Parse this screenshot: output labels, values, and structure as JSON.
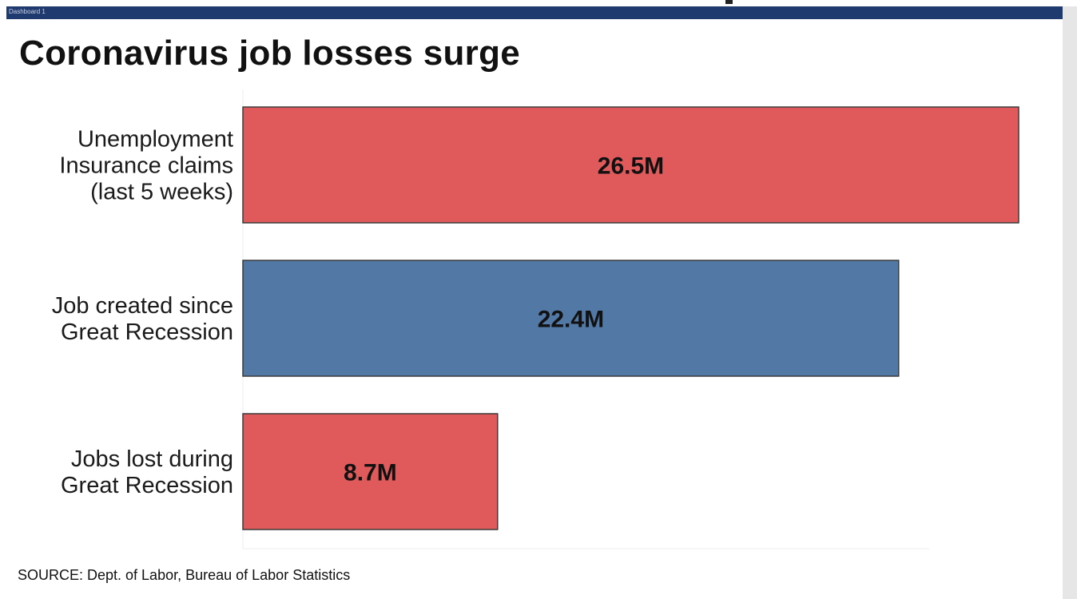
{
  "dashboard": {
    "tab_label": "Dashboard 1"
  },
  "chart_data": {
    "type": "bar",
    "orientation": "horizontal",
    "title": "Coronavirus job losses surge",
    "categories": [
      "Unemployment\nInsurance claims\n(last 5 weeks)",
      "Job created since\nGreat Recession",
      "Jobs lost during\nGreat Recession"
    ],
    "values": [
      26.5,
      22.4,
      8.7
    ],
    "value_labels": [
      "26.5M",
      "22.4M",
      "8.7M"
    ],
    "unit": "M",
    "colors": [
      "#e05a5c",
      "#5279a5",
      "#e05a5c"
    ],
    "xlim": [
      0,
      26.5
    ],
    "grid": false,
    "legend": "none"
  },
  "source": "SOURCE: Dept. of Labor, Bureau of Labor Statistics"
}
